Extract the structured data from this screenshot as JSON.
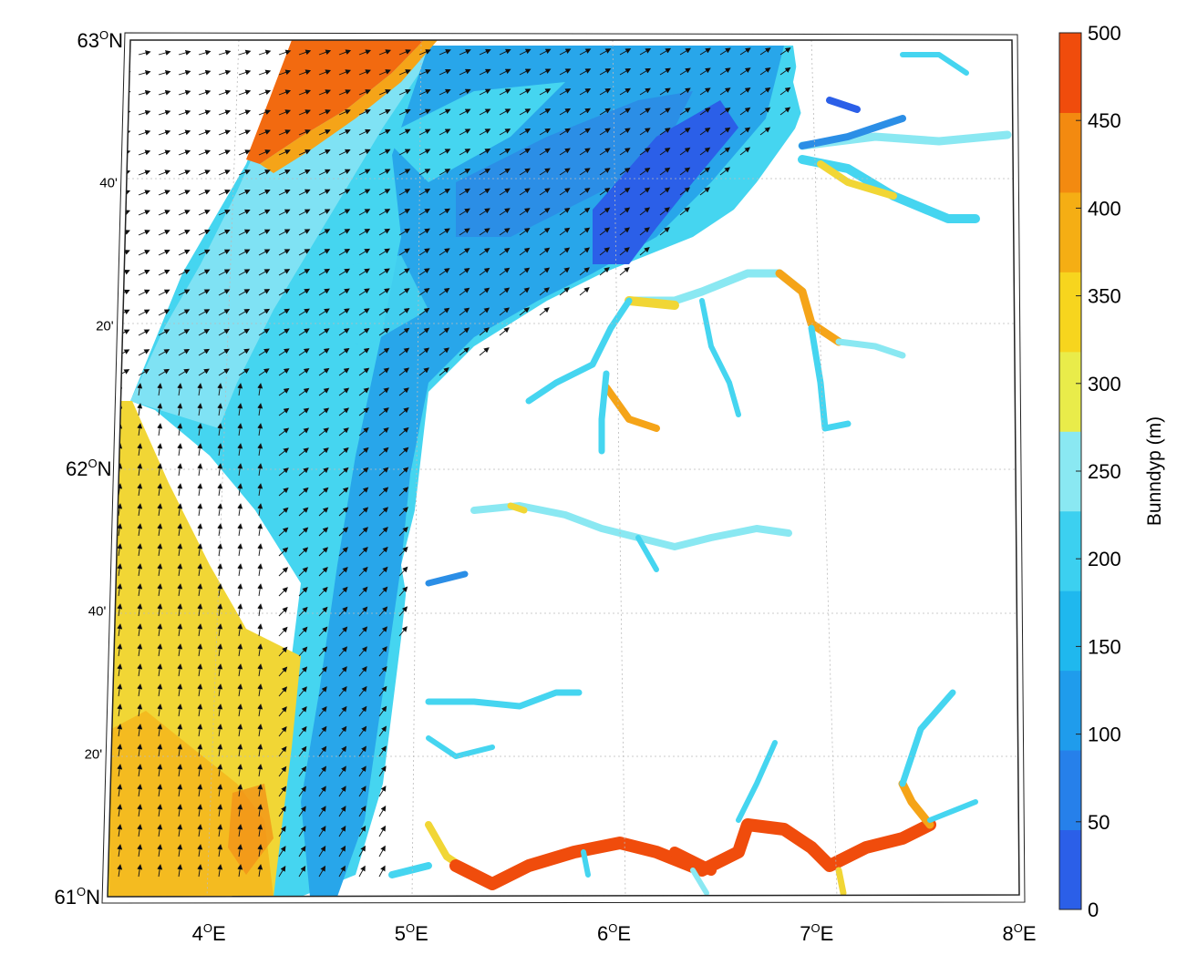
{
  "map": {
    "lat_labels": [
      {
        "lat": 63.0,
        "text": "63",
        "deg": "O",
        "hemi": "N",
        "major": true
      },
      {
        "lat": 62.6667,
        "text": "40'",
        "major": false
      },
      {
        "lat": 62.3333,
        "text": "20'",
        "major": false
      },
      {
        "lat": 62.0,
        "text": "62",
        "deg": "O",
        "hemi": "N",
        "major": true
      },
      {
        "lat": 61.6667,
        "text": "40'",
        "major": false
      },
      {
        "lat": 61.3333,
        "text": "20'",
        "major": false
      },
      {
        "lat": 61.0,
        "text": "61",
        "deg": "O",
        "hemi": "N",
        "major": true
      }
    ],
    "lon_labels": [
      {
        "lon": 4,
        "text": "4",
        "deg": "O",
        "hemi": "E"
      },
      {
        "lon": 5,
        "text": "5",
        "deg": "O",
        "hemi": "E"
      },
      {
        "lon": 6,
        "text": "6",
        "deg": "O",
        "hemi": "E"
      },
      {
        "lon": 7,
        "text": "7",
        "deg": "O",
        "hemi": "E"
      },
      {
        "lon": 8,
        "text": "8",
        "deg": "O",
        "hemi": "E"
      }
    ],
    "colors": {
      "deep": "#f04c0c",
      "deep2": "#f26a10",
      "orange": "#f5a418",
      "yellow": "#f7e020",
      "yellow2": "#f1d635",
      "cyan_light": "#a7f0f5",
      "cyan": "#45d5f0",
      "blue_mid": "#1fb0ec",
      "blue": "#2494e6",
      "blue_dark": "#2b5fe8",
      "land": "#ffffff"
    }
  },
  "colorbar": {
    "title": "Bunndyp (m)",
    "min": 0,
    "max": 500,
    "tick_labels": [
      "500",
      "450",
      "400",
      "350",
      "300",
      "250",
      "200",
      "150",
      "100",
      "50",
      "0"
    ],
    "colors": [
      "#2b5fe8",
      "#2680ea",
      "#1f9cec",
      "#1fb8ee",
      "#3cd0f0",
      "#8ae8f2",
      "#e9ec4a",
      "#f7d51e",
      "#f5ae14",
      "#f38a10",
      "#f04c0c"
    ]
  }
}
